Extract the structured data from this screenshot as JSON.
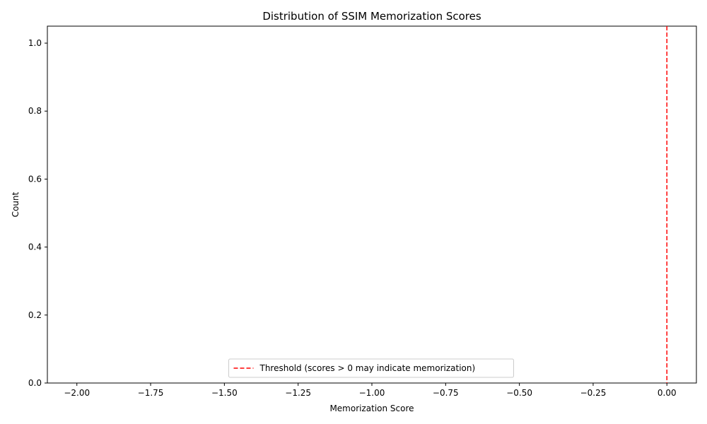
{
  "chart_data": {
    "type": "histogram",
    "title": "Distribution of SSIM Memorization Scores",
    "xlabel": "Memorization Score",
    "ylabel": "Count",
    "xlim": [
      -2.1,
      0.1
    ],
    "ylim": [
      0.0,
      1.05
    ],
    "x_ticks": [
      -2.0,
      -1.75,
      -1.5,
      -1.25,
      -1.0,
      -0.75,
      -0.5,
      -0.25,
      0.0
    ],
    "x_tick_labels": [
      "−2.00",
      "−1.75",
      "−1.50",
      "−1.25",
      "−1.00",
      "−0.75",
      "−0.50",
      "−0.25",
      "0.00"
    ],
    "y_ticks": [
      0.0,
      0.2,
      0.4,
      0.6,
      0.8,
      1.0
    ],
    "y_tick_labels": [
      "0.0",
      "0.2",
      "0.4",
      "0.6",
      "0.8",
      "1.0"
    ],
    "bars": [],
    "threshold": {
      "x": 0.0,
      "style": "dashed",
      "color": "#ff0000",
      "label": "Threshold (scores > 0 may indicate memorization)"
    },
    "legend": {
      "placement": "lower-center",
      "entries": [
        "Threshold (scores > 0 may indicate memorization)"
      ]
    },
    "grid": false
  }
}
